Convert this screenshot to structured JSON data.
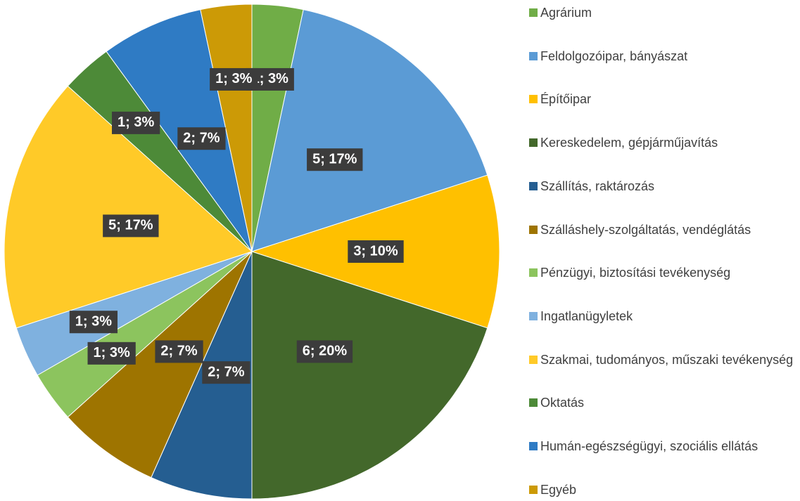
{
  "chart_data": {
    "type": "pie",
    "categories": [
      "Agrárium",
      "Feldolgozóipar, bányászat",
      "Építőipar",
      "Kereskedelem, gépjárműjavítás",
      "Szállítás, raktározás",
      "Szálláshely-szolgáltatás, vendéglátás",
      "Pénzügyi, biztosítási tevékenység",
      "Ingatlanügyletek",
      "Szakmai, tudományos, műszaki tevékenység",
      "Oktatás",
      "Humán-egészségügyi, szociális ellátás",
      "Egyéb"
    ],
    "values": [
      1,
      5,
      3,
      6,
      2,
      2,
      1,
      1,
      5,
      1,
      2,
      1
    ],
    "value_labels": [
      "1; 3%",
      "5; 17%",
      "3; 10%",
      "6; 20%",
      "2; 7%",
      "2; 7%",
      "1; 3%",
      "1; 3%",
      "5; 17%",
      "1; 3%",
      "2; 7%",
      "1; 3%"
    ],
    "colors": [
      "#70ad47",
      "#5b9bd5",
      "#ffc000",
      "#43682b",
      "#255e91",
      "#9e7400",
      "#8cc45e",
      "#7fb1df",
      "#ffca28",
      "#4d8a38",
      "#2f7bc4",
      "#cc9a06"
    ],
    "legend": "right"
  }
}
